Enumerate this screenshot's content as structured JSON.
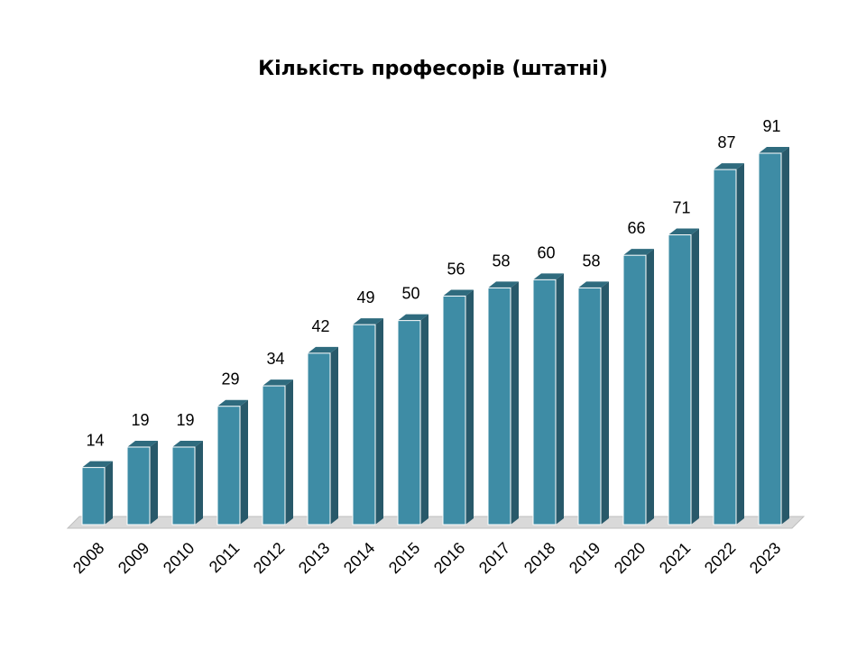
{
  "chart_data": {
    "type": "bar",
    "title": "Кількість професорів (штатні)",
    "xlabel": "",
    "ylabel": "",
    "categories": [
      "2008",
      "2009",
      "2010",
      "2011",
      "2012",
      "2013",
      "2014",
      "2015",
      "2016",
      "2017",
      "2018",
      "2019",
      "2020",
      "2021",
      "2022",
      "2023"
    ],
    "values": [
      14,
      19,
      19,
      29,
      34,
      42,
      49,
      50,
      56,
      58,
      60,
      58,
      66,
      71,
      87,
      91
    ],
    "ylim": [
      0,
      91
    ],
    "grid": false,
    "legend": "none",
    "data_labels": true,
    "style": "3d-column",
    "colors": {
      "front": "#3e8ca5",
      "side": "#28596a",
      "top": "#2f6b7e",
      "floor": "#d9d9d9"
    }
  }
}
